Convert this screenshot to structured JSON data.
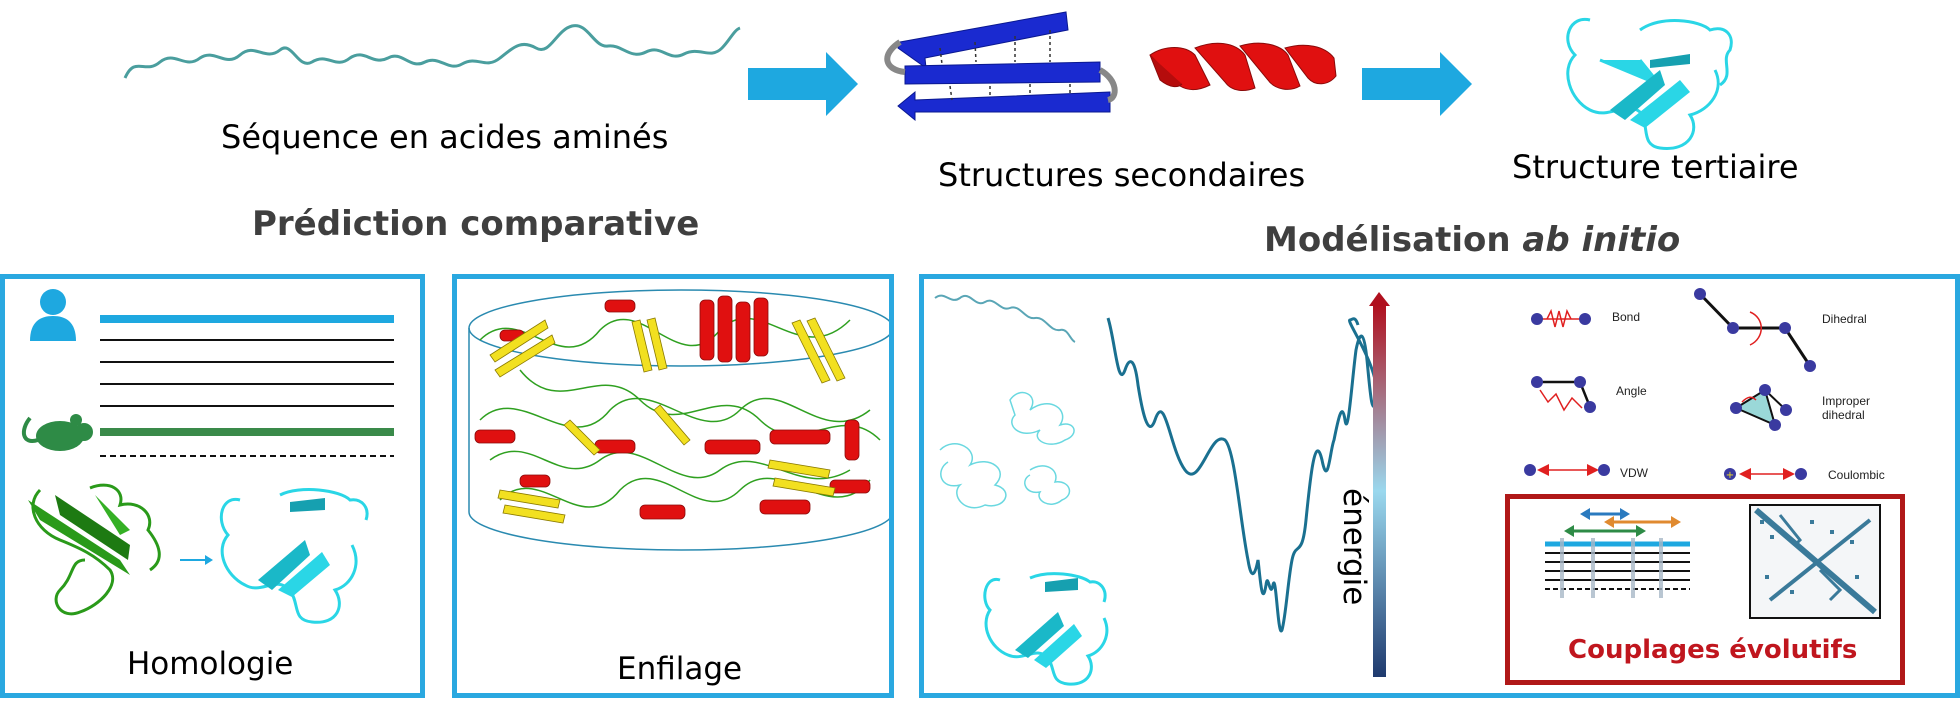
{
  "top": {
    "sequence_label": "Séquence en acides aminés",
    "secondary_label": "Structures secondaires",
    "tertiary_label": "Structure tertiaire"
  },
  "sections": {
    "comparative_title": "Prédiction comparative",
    "abinitio_title_prefix": "Modélisation ",
    "abinitio_title_italic": "ab initio"
  },
  "panels": {
    "homology_label": "Homologie",
    "threading_label": "Enfilage",
    "energy_label": "énergie",
    "coupling_label": "Couplages évolutifs"
  },
  "forcefield": {
    "bond": "Bond",
    "dihedral": "Dihedral",
    "angle": "Angle",
    "improper": "Improper",
    "improper2": "dihedral",
    "vdw": "VDW",
    "coulombic": "Coulombic"
  },
  "colors": {
    "accent_blue": "#2aa8e0",
    "helix_red": "#e01010",
    "strand_blue": "#1a2ad0",
    "strand_yellow": "#f2e020",
    "coil_green": "#30a020",
    "protein_cyan": "#2ad6e6",
    "energy_curve": "#1a7090",
    "coupling_red": "#c0161e"
  }
}
